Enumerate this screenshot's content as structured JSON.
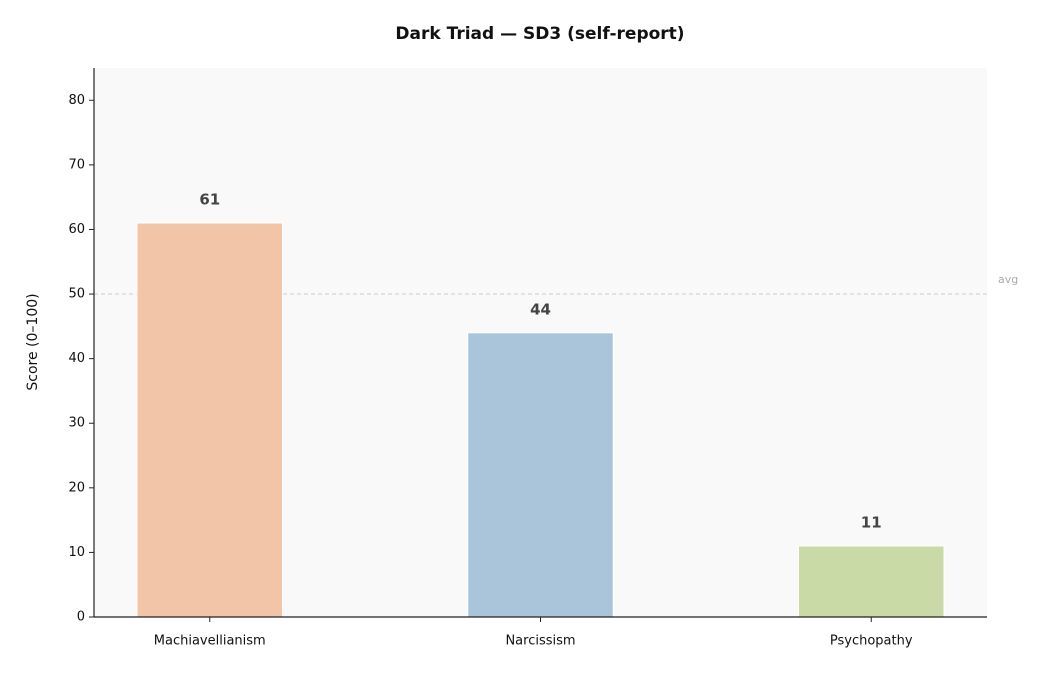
{
  "chart_data": {
    "type": "bar",
    "title": "Dark Triad — SD3 (self-report)",
    "y_label": "Score (0–100)",
    "categories": [
      "Machiavellianism",
      "Narcissism",
      "Psychopathy"
    ],
    "values": [
      61,
      44,
      11
    ],
    "colors": [
      "#f2c4a8",
      "#aac5da",
      "#cadaa6"
    ],
    "ylim": [
      0,
      85
    ],
    "yticks": [
      0,
      10,
      20,
      30,
      40,
      50,
      60,
      70,
      80
    ],
    "reference_line": {
      "value": 50,
      "label": "avg"
    },
    "grid": false
  }
}
